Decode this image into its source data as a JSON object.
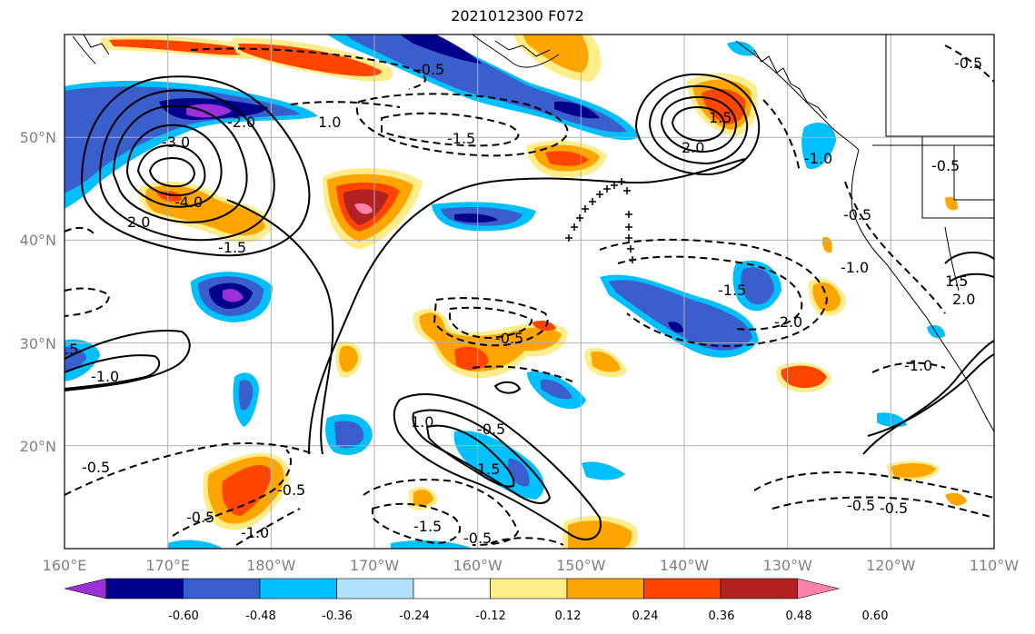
{
  "title": "2021012300 F072",
  "map": {
    "lon_range": [
      160,
      250
    ],
    "lat_range": [
      10,
      60
    ],
    "lon_ticks": [
      "160°E",
      "170°E",
      "180°W",
      "170°W",
      "160°W",
      "150°W",
      "140°W",
      "130°W",
      "120°W",
      "110°W"
    ],
    "lat_ticks": [
      "20°N",
      "30°N",
      "40°N",
      "50°N"
    ],
    "grid": true,
    "contour_labels": [
      "-0.5",
      "1.0",
      "-1.5",
      "-3.0",
      "-4.0",
      "2.0",
      "-1.5",
      "2.0",
      "1.5",
      "-0.5",
      "-0.5",
      "-1.0",
      "-1.0",
      "-1.5",
      "-2.0",
      "-1.0",
      "-0.5",
      "-0.5",
      "-0.5",
      "1.5",
      "-1.0",
      "-0.5",
      "-1.5",
      "-0.5",
      "-0.5",
      "1.0",
      "-0.5",
      "-0.5",
      "-1.0",
      "-0.5",
      "1.5",
      "-2.0",
      "2.0",
      ".5"
    ]
  },
  "colorbar": {
    "tick_labels": [
      "-0.60",
      "-0.48",
      "-0.36",
      "-0.24",
      "-0.12",
      "0.12",
      "0.24",
      "0.36",
      "0.48",
      "0.60"
    ],
    "colors": [
      "#9b30d9",
      "#00008b",
      "#3a5fcd",
      "#00bfff",
      "#b0e2ff",
      "#ffffff",
      "#ffec8b",
      "#ffa500",
      "#ff4500",
      "#b22222",
      "#ff82ab"
    ]
  }
}
